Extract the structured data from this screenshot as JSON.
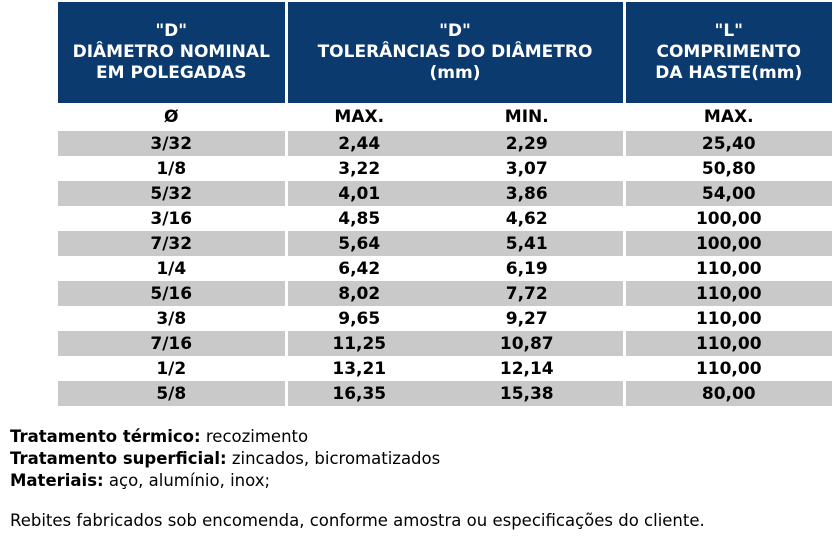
{
  "table": {
    "headers": [
      {
        "line1": "\"D\"",
        "line2": "DIÂMETRO NOMINAL",
        "line3": "EM POLEGADAS"
      },
      {
        "line1": "\"D\"",
        "line2": "TOLERÂNCIAS DO DIÂMETRO",
        "line3": "(mm)"
      },
      {
        "line1": "\"L\"",
        "line2": "COMPRIMENTO",
        "line3": "DA HASTE(mm)"
      }
    ],
    "subheaders": [
      "Ø",
      "MAX.",
      "MIN.",
      "MAX."
    ],
    "rows": [
      [
        "3/32",
        "2,44",
        "2,29",
        "25,40"
      ],
      [
        "1/8",
        "3,22",
        "3,07",
        "50,80"
      ],
      [
        "5/32",
        "4,01",
        "3,86",
        "54,00"
      ],
      [
        "3/16",
        "4,85",
        "4,62",
        "100,00"
      ],
      [
        "7/32",
        "5,64",
        "5,41",
        "100,00"
      ],
      [
        "1/4",
        "6,42",
        "6,19",
        "110,00"
      ],
      [
        "5/16",
        "8,02",
        "7,72",
        "110,00"
      ],
      [
        "3/8",
        "9,65",
        "9,27",
        "110,00"
      ],
      [
        "7/16",
        "11,25",
        "10,87",
        "110,00"
      ],
      [
        "1/2",
        "13,21",
        "12,14",
        "110,00"
      ],
      [
        "5/8",
        "16,35",
        "15,38",
        "80,00"
      ]
    ]
  },
  "notes": [
    {
      "label": "Tratamento térmico:",
      "value": " recozimento"
    },
    {
      "label": "Tratamento superficial:",
      "value": " zincados, bicromatizados"
    },
    {
      "label": "Materiais:",
      "value": " aço, alumínio, inox;"
    }
  ],
  "footer": "Rebites fabricados sob encomenda, conforme amostra ou especificações do cliente.",
  "colors": {
    "header_bg": "#0b3a6e",
    "row_shade": "#c9c9c9"
  }
}
